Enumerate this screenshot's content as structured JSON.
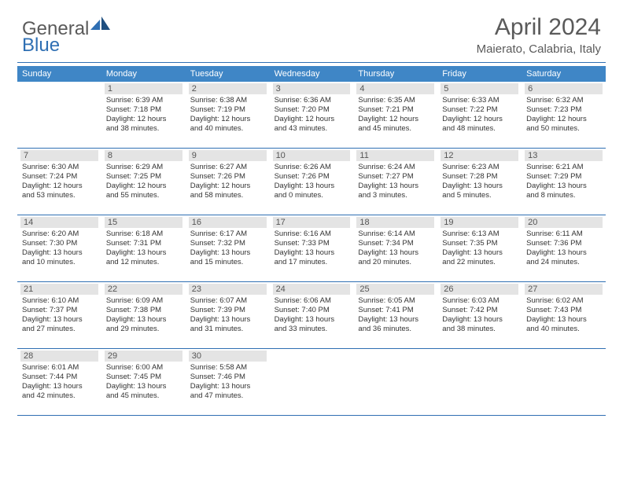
{
  "brand": {
    "part1": "General",
    "part2": "Blue"
  },
  "title": "April 2024",
  "location": "Maierato, Calabria, Italy",
  "colors": {
    "header_bg": "#3f86c6",
    "rule": "#2f6fb3",
    "daynum_bg": "#e4e4e4",
    "text": "#333333",
    "muted": "#5a5a5a",
    "brand_blue": "#2f6fb3"
  },
  "daysOfWeek": [
    "Sunday",
    "Monday",
    "Tuesday",
    "Wednesday",
    "Thursday",
    "Friday",
    "Saturday"
  ],
  "weeks": [
    [
      {
        "num": "",
        "lines": []
      },
      {
        "num": "1",
        "lines": [
          "Sunrise: 6:39 AM",
          "Sunset: 7:18 PM",
          "Daylight: 12 hours",
          "and 38 minutes."
        ]
      },
      {
        "num": "2",
        "lines": [
          "Sunrise: 6:38 AM",
          "Sunset: 7:19 PM",
          "Daylight: 12 hours",
          "and 40 minutes."
        ]
      },
      {
        "num": "3",
        "lines": [
          "Sunrise: 6:36 AM",
          "Sunset: 7:20 PM",
          "Daylight: 12 hours",
          "and 43 minutes."
        ]
      },
      {
        "num": "4",
        "lines": [
          "Sunrise: 6:35 AM",
          "Sunset: 7:21 PM",
          "Daylight: 12 hours",
          "and 45 minutes."
        ]
      },
      {
        "num": "5",
        "lines": [
          "Sunrise: 6:33 AM",
          "Sunset: 7:22 PM",
          "Daylight: 12 hours",
          "and 48 minutes."
        ]
      },
      {
        "num": "6",
        "lines": [
          "Sunrise: 6:32 AM",
          "Sunset: 7:23 PM",
          "Daylight: 12 hours",
          "and 50 minutes."
        ]
      }
    ],
    [
      {
        "num": "7",
        "lines": [
          "Sunrise: 6:30 AM",
          "Sunset: 7:24 PM",
          "Daylight: 12 hours",
          "and 53 minutes."
        ]
      },
      {
        "num": "8",
        "lines": [
          "Sunrise: 6:29 AM",
          "Sunset: 7:25 PM",
          "Daylight: 12 hours",
          "and 55 minutes."
        ]
      },
      {
        "num": "9",
        "lines": [
          "Sunrise: 6:27 AM",
          "Sunset: 7:26 PM",
          "Daylight: 12 hours",
          "and 58 minutes."
        ]
      },
      {
        "num": "10",
        "lines": [
          "Sunrise: 6:26 AM",
          "Sunset: 7:26 PM",
          "Daylight: 13 hours",
          "and 0 minutes."
        ]
      },
      {
        "num": "11",
        "lines": [
          "Sunrise: 6:24 AM",
          "Sunset: 7:27 PM",
          "Daylight: 13 hours",
          "and 3 minutes."
        ]
      },
      {
        "num": "12",
        "lines": [
          "Sunrise: 6:23 AM",
          "Sunset: 7:28 PM",
          "Daylight: 13 hours",
          "and 5 minutes."
        ]
      },
      {
        "num": "13",
        "lines": [
          "Sunrise: 6:21 AM",
          "Sunset: 7:29 PM",
          "Daylight: 13 hours",
          "and 8 minutes."
        ]
      }
    ],
    [
      {
        "num": "14",
        "lines": [
          "Sunrise: 6:20 AM",
          "Sunset: 7:30 PM",
          "Daylight: 13 hours",
          "and 10 minutes."
        ]
      },
      {
        "num": "15",
        "lines": [
          "Sunrise: 6:18 AM",
          "Sunset: 7:31 PM",
          "Daylight: 13 hours",
          "and 12 minutes."
        ]
      },
      {
        "num": "16",
        "lines": [
          "Sunrise: 6:17 AM",
          "Sunset: 7:32 PM",
          "Daylight: 13 hours",
          "and 15 minutes."
        ]
      },
      {
        "num": "17",
        "lines": [
          "Sunrise: 6:16 AM",
          "Sunset: 7:33 PM",
          "Daylight: 13 hours",
          "and 17 minutes."
        ]
      },
      {
        "num": "18",
        "lines": [
          "Sunrise: 6:14 AM",
          "Sunset: 7:34 PM",
          "Daylight: 13 hours",
          "and 20 minutes."
        ]
      },
      {
        "num": "19",
        "lines": [
          "Sunrise: 6:13 AM",
          "Sunset: 7:35 PM",
          "Daylight: 13 hours",
          "and 22 minutes."
        ]
      },
      {
        "num": "20",
        "lines": [
          "Sunrise: 6:11 AM",
          "Sunset: 7:36 PM",
          "Daylight: 13 hours",
          "and 24 minutes."
        ]
      }
    ],
    [
      {
        "num": "21",
        "lines": [
          "Sunrise: 6:10 AM",
          "Sunset: 7:37 PM",
          "Daylight: 13 hours",
          "and 27 minutes."
        ]
      },
      {
        "num": "22",
        "lines": [
          "Sunrise: 6:09 AM",
          "Sunset: 7:38 PM",
          "Daylight: 13 hours",
          "and 29 minutes."
        ]
      },
      {
        "num": "23",
        "lines": [
          "Sunrise: 6:07 AM",
          "Sunset: 7:39 PM",
          "Daylight: 13 hours",
          "and 31 minutes."
        ]
      },
      {
        "num": "24",
        "lines": [
          "Sunrise: 6:06 AM",
          "Sunset: 7:40 PM",
          "Daylight: 13 hours",
          "and 33 minutes."
        ]
      },
      {
        "num": "25",
        "lines": [
          "Sunrise: 6:05 AM",
          "Sunset: 7:41 PM",
          "Daylight: 13 hours",
          "and 36 minutes."
        ]
      },
      {
        "num": "26",
        "lines": [
          "Sunrise: 6:03 AM",
          "Sunset: 7:42 PM",
          "Daylight: 13 hours",
          "and 38 minutes."
        ]
      },
      {
        "num": "27",
        "lines": [
          "Sunrise: 6:02 AM",
          "Sunset: 7:43 PM",
          "Daylight: 13 hours",
          "and 40 minutes."
        ]
      }
    ],
    [
      {
        "num": "28",
        "lines": [
          "Sunrise: 6:01 AM",
          "Sunset: 7:44 PM",
          "Daylight: 13 hours",
          "and 42 minutes."
        ]
      },
      {
        "num": "29",
        "lines": [
          "Sunrise: 6:00 AM",
          "Sunset: 7:45 PM",
          "Daylight: 13 hours",
          "and 45 minutes."
        ]
      },
      {
        "num": "30",
        "lines": [
          "Sunrise: 5:58 AM",
          "Sunset: 7:46 PM",
          "Daylight: 13 hours",
          "and 47 minutes."
        ]
      },
      {
        "num": "",
        "lines": []
      },
      {
        "num": "",
        "lines": []
      },
      {
        "num": "",
        "lines": []
      },
      {
        "num": "",
        "lines": []
      }
    ]
  ]
}
